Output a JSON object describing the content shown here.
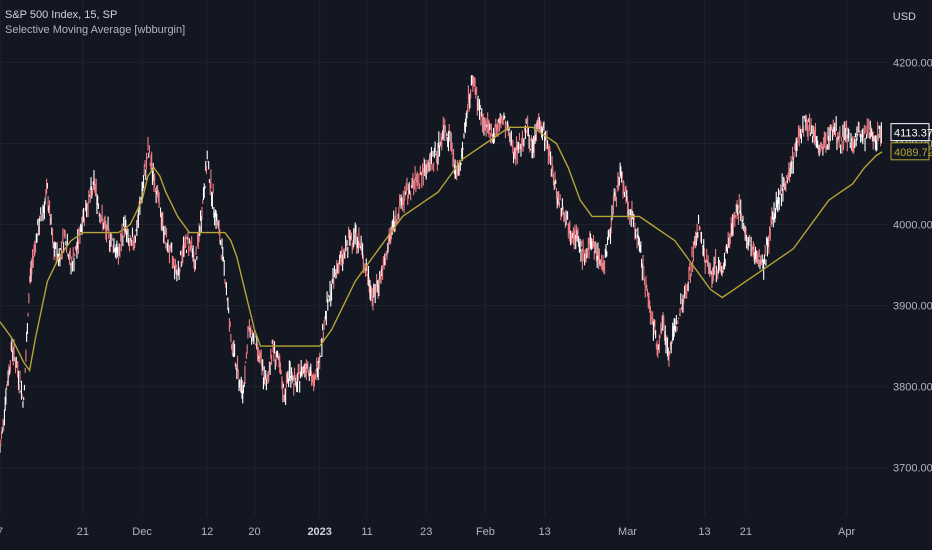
{
  "legend": {
    "symbol_line": "S&P 500 Index, 15, SP",
    "indicator_line": "Selective Moving Average [wbburgin]"
  },
  "currency": "USD",
  "colors": {
    "background": "#131722",
    "grid": "#1e222d",
    "price": "#f07c86",
    "price_alt": "#ffffff",
    "sma": "#b5a534",
    "last_price_box": "#ffffff",
    "sma_box": "#b5a534"
  },
  "chart_data": {
    "type": "line",
    "title": "S&P 500 Index, 15, SP",
    "xlabel": "",
    "ylabel": "",
    "ylim": [
      3670,
      4240
    ],
    "y_ticks": [
      3700,
      3800,
      3900,
      4000,
      4100,
      4200
    ],
    "y_tick_labels": [
      "3700.00",
      "3800.00",
      "3900.00",
      "4000.00",
      "4100.00",
      "4200.00"
    ],
    "x_ticks": [
      {
        "label": "7",
        "x": 0,
        "bold": false
      },
      {
        "label": "21",
        "x": 14,
        "bold": false
      },
      {
        "label": "Dec",
        "x": 24,
        "bold": false
      },
      {
        "label": "12",
        "x": 35,
        "bold": false
      },
      {
        "label": "20",
        "x": 43,
        "bold": false
      },
      {
        "label": "2023",
        "x": 54,
        "bold": true
      },
      {
        "label": "11",
        "x": 62,
        "bold": false
      },
      {
        "label": "23",
        "x": 72,
        "bold": false
      },
      {
        "label": "Feb",
        "x": 82,
        "bold": false
      },
      {
        "label": "13",
        "x": 92,
        "bold": false
      },
      {
        "label": "Mar",
        "x": 106,
        "bold": false
      },
      {
        "label": "13",
        "x": 119,
        "bold": false
      },
      {
        "label": "21",
        "x": 126,
        "bold": false
      },
      {
        "label": "Apr",
        "x": 143,
        "bold": false
      }
    ],
    "xlim": [
      0,
      150
    ],
    "series": [
      {
        "name": "S&P 500 Index",
        "x": [
          0,
          1,
          2,
          3,
          4,
          5,
          6,
          7,
          8,
          9,
          10,
          11,
          12,
          13,
          14,
          15,
          16,
          17,
          18,
          19,
          20,
          21,
          22,
          23,
          24,
          25,
          26,
          27,
          28,
          29,
          30,
          31,
          32,
          33,
          34,
          35,
          36,
          37,
          38,
          39,
          40,
          41,
          42,
          43,
          44,
          45,
          46,
          47,
          48,
          49,
          50,
          51,
          52,
          53,
          54,
          55,
          56,
          57,
          58,
          59,
          60,
          61,
          62,
          63,
          64,
          65,
          66,
          67,
          68,
          69,
          70,
          71,
          72,
          73,
          74,
          75,
          76,
          77,
          78,
          79,
          80,
          81,
          82,
          83,
          84,
          85,
          86,
          87,
          88,
          89,
          90,
          91,
          92,
          93,
          94,
          95,
          96,
          97,
          98,
          99,
          100,
          101,
          102,
          103,
          104,
          105,
          106,
          107,
          108,
          109,
          110,
          111,
          112,
          113,
          114,
          115,
          116,
          117,
          118,
          119,
          120,
          121,
          122,
          123,
          124,
          125,
          126,
          127,
          128,
          129,
          130,
          131,
          132,
          133,
          134,
          135,
          136,
          137,
          138,
          139,
          140,
          141,
          142,
          143,
          144,
          145,
          146,
          147,
          148,
          149
        ],
        "values": [
          3720,
          3790,
          3850,
          3820,
          3780,
          3930,
          3980,
          4010,
          4040,
          3970,
          3960,
          3990,
          3950,
          3970,
          4010,
          4030,
          4050,
          4010,
          3990,
          3980,
          3960,
          4000,
          3970,
          3990,
          4040,
          4090,
          4060,
          4020,
          3980,
          3960,
          3940,
          3970,
          3980,
          3950,
          4010,
          4080,
          4030,
          3990,
          3940,
          3860,
          3820,
          3790,
          3870,
          3860,
          3830,
          3800,
          3850,
          3830,
          3790,
          3820,
          3800,
          3820,
          3830,
          3800,
          3840,
          3890,
          3920,
          3950,
          3960,
          3980,
          3990,
          3970,
          3940,
          3910,
          3930,
          3950,
          3990,
          4010,
          4030,
          4040,
          4050,
          4060,
          4070,
          4080,
          4090,
          4120,
          4110,
          4060,
          4080,
          4150,
          4180,
          4140,
          4120,
          4110,
          4120,
          4130,
          4110,
          4090,
          4100,
          4120,
          4090,
          4130,
          4110,
          4080,
          4040,
          4020,
          4000,
          3990,
          3970,
          3960,
          3980,
          3960,
          3950,
          3990,
          4040,
          4060,
          4020,
          4010,
          3970,
          3930,
          3890,
          3850,
          3880,
          3840,
          3870,
          3900,
          3920,
          3960,
          4000,
          3960,
          3940,
          3950,
          3940,
          3980,
          4010,
          4020,
          3980,
          3970,
          3960,
          3950,
          3990,
          4020,
          4040,
          4060,
          4080,
          4110,
          4130,
          4120,
          4100,
          4090,
          4110,
          4120,
          4100,
          4113.37,
          4100,
          4110,
          4105,
          4113.37,
          4110,
          4113.37
        ]
      },
      {
        "name": "Selective Moving Average [wbburgin]",
        "x": [
          0,
          2,
          4,
          5,
          6,
          8,
          10,
          12,
          14,
          16,
          18,
          20,
          22,
          24,
          25,
          26,
          27,
          28,
          30,
          32,
          34,
          35,
          36,
          37,
          38,
          39,
          40,
          41,
          42,
          43,
          44,
          46,
          48,
          50,
          52,
          54,
          56,
          58,
          60,
          62,
          64,
          66,
          68,
          70,
          72,
          74,
          76,
          78,
          80,
          82,
          84,
          86,
          88,
          90,
          92,
          94,
          96,
          98,
          100,
          102,
          104,
          106,
          108,
          110,
          112,
          114,
          116,
          118,
          120,
          122,
          124,
          126,
          128,
          130,
          132,
          134,
          136,
          138,
          140,
          142,
          144,
          146,
          148,
          149
        ],
        "values": [
          3880,
          3860,
          3830,
          3820,
          3860,
          3930,
          3960,
          3980,
          3990,
          3990,
          3990,
          3990,
          4000,
          4030,
          4060,
          4070,
          4060,
          4040,
          4010,
          3990,
          3990,
          3990,
          3990,
          3990,
          3990,
          3980,
          3960,
          3930,
          3900,
          3870,
          3850,
          3850,
          3850,
          3850,
          3850,
          3850,
          3870,
          3900,
          3930,
          3950,
          3970,
          3990,
          4010,
          4020,
          4030,
          4040,
          4060,
          4080,
          4090,
          4100,
          4110,
          4120,
          4120,
          4120,
          4110,
          4100,
          4070,
          4030,
          4010,
          4010,
          4010,
          4010,
          4010,
          4000,
          3990,
          3980,
          3960,
          3940,
          3920,
          3910,
          3920,
          3930,
          3940,
          3950,
          3960,
          3970,
          3990,
          4010,
          4030,
          4040,
          4050,
          4070,
          4085,
          4089.72
        ]
      }
    ],
    "last_price_label": "4113.37",
    "sma_label": "4089.72",
    "grid": true,
    "legend_position": "top-left"
  }
}
